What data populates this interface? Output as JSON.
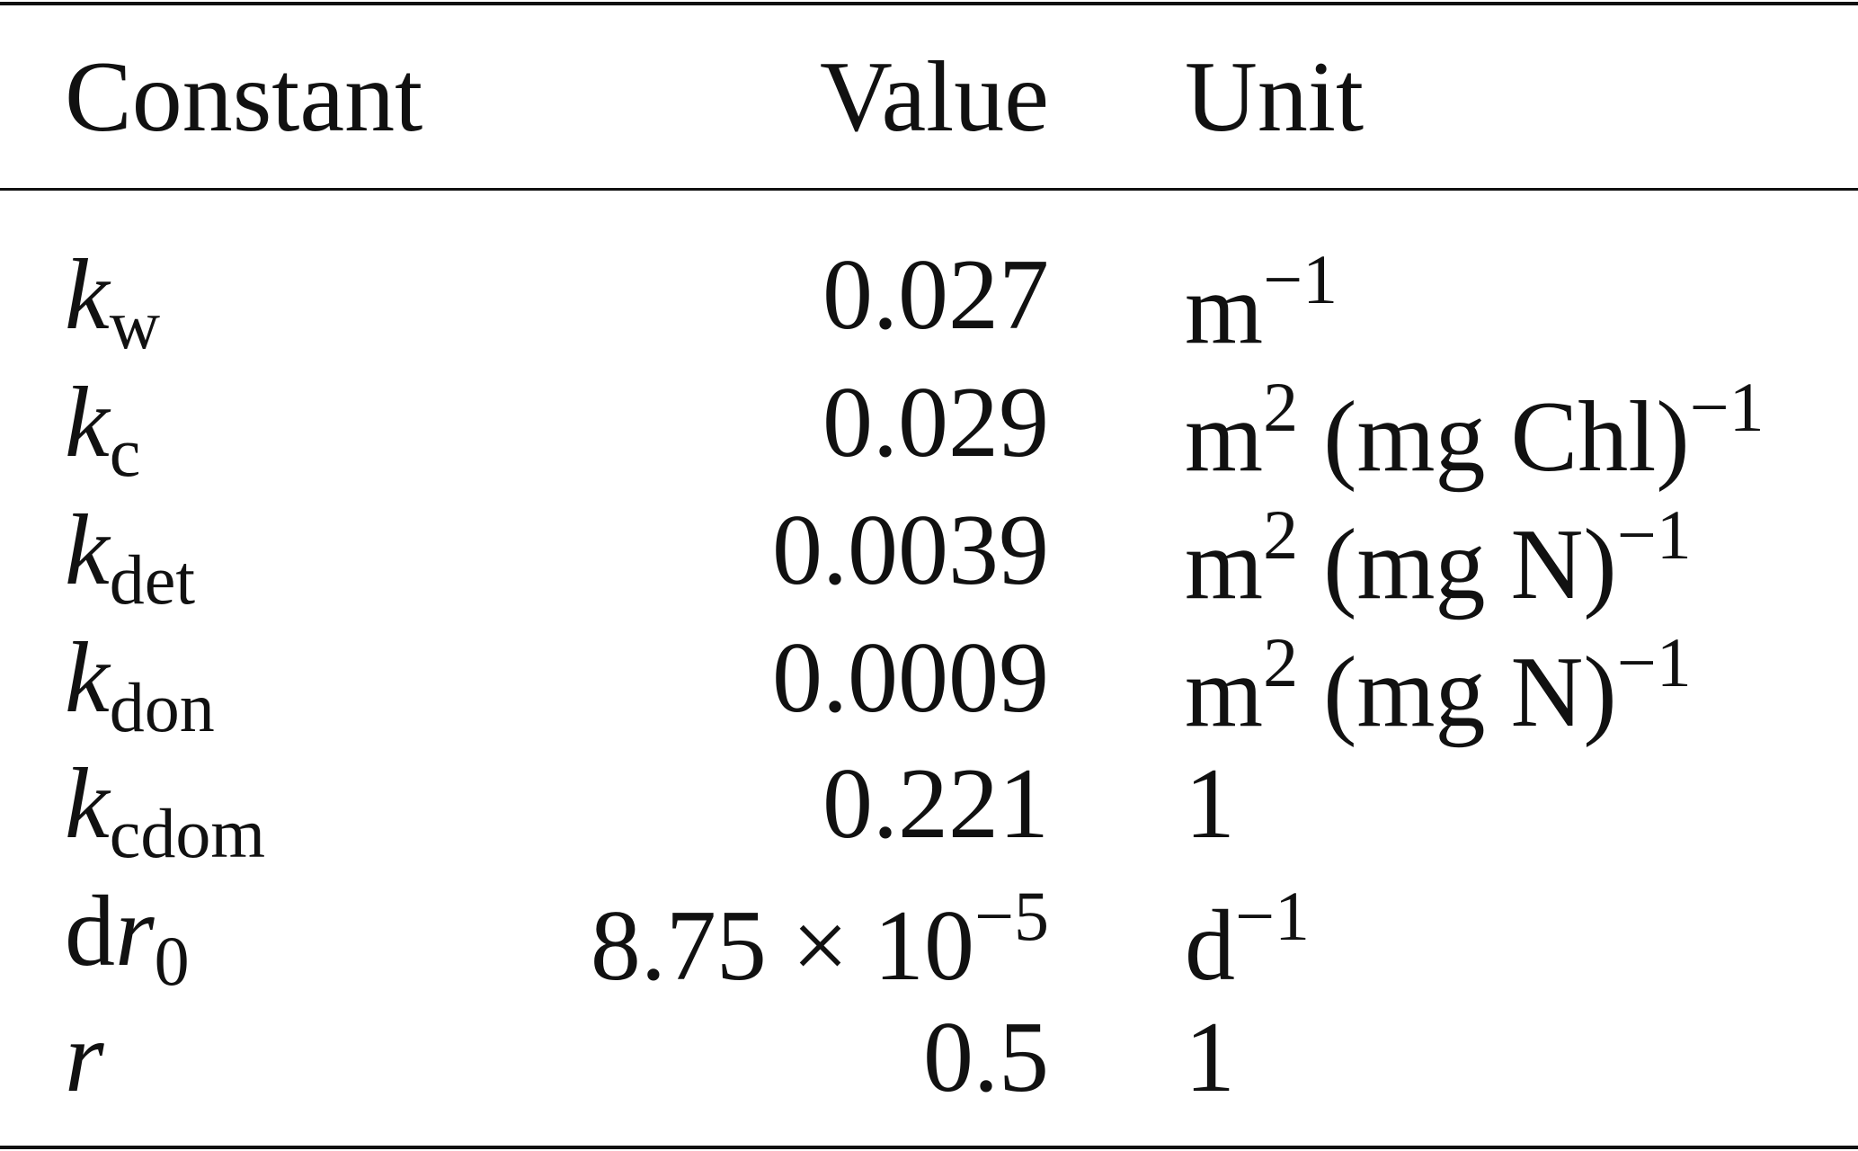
{
  "header": {
    "constant": "Constant",
    "value": "Value",
    "unit": "Unit"
  },
  "rows": [
    {
      "symbol": [
        {
          "t": "k",
          "s": "i"
        },
        {
          "t": "w",
          "s": "sub"
        }
      ],
      "value": [
        {
          "t": "0.027"
        }
      ],
      "unit": [
        {
          "t": "m"
        },
        {
          "t": "−1",
          "s": "sup"
        }
      ]
    },
    {
      "symbol": [
        {
          "t": "k",
          "s": "i"
        },
        {
          "t": "c",
          "s": "sub"
        }
      ],
      "value": [
        {
          "t": "0.029"
        }
      ],
      "unit": [
        {
          "t": "m"
        },
        {
          "t": "2",
          "s": "sup"
        },
        {
          "t": " (mg Chl)"
        },
        {
          "t": "−1",
          "s": "sup"
        }
      ]
    },
    {
      "symbol": [
        {
          "t": "k",
          "s": "i"
        },
        {
          "t": "det",
          "s": "sub"
        }
      ],
      "value": [
        {
          "t": "0.0039"
        }
      ],
      "unit": [
        {
          "t": "m"
        },
        {
          "t": "2",
          "s": "sup"
        },
        {
          "t": " (mg N)"
        },
        {
          "t": "−1",
          "s": "sup"
        }
      ]
    },
    {
      "symbol": [
        {
          "t": "k",
          "s": "i"
        },
        {
          "t": "don",
          "s": "sub"
        }
      ],
      "value": [
        {
          "t": "0.0009"
        }
      ],
      "unit": [
        {
          "t": "m"
        },
        {
          "t": "2",
          "s": "sup"
        },
        {
          "t": " (mg N)"
        },
        {
          "t": "−1",
          "s": "sup"
        }
      ]
    },
    {
      "symbol": [
        {
          "t": "k",
          "s": "i"
        },
        {
          "t": "cdom",
          "s": "sub"
        }
      ],
      "value": [
        {
          "t": "0.221"
        }
      ],
      "unit": [
        {
          "t": "1"
        }
      ]
    },
    {
      "symbol": [
        {
          "t": "d"
        },
        {
          "t": "r",
          "s": "i"
        },
        {
          "t": "0",
          "s": "sub"
        }
      ],
      "value": [
        {
          "t": "8.75 × 10"
        },
        {
          "t": "−5",
          "s": "sup"
        }
      ],
      "unit": [
        {
          "t": "d"
        },
        {
          "t": "−1",
          "s": "sup"
        }
      ]
    },
    {
      "symbol": [
        {
          "t": "r",
          "s": "i"
        }
      ],
      "value": [
        {
          "t": "0.5"
        }
      ],
      "unit": [
        {
          "t": "1"
        }
      ]
    }
  ]
}
